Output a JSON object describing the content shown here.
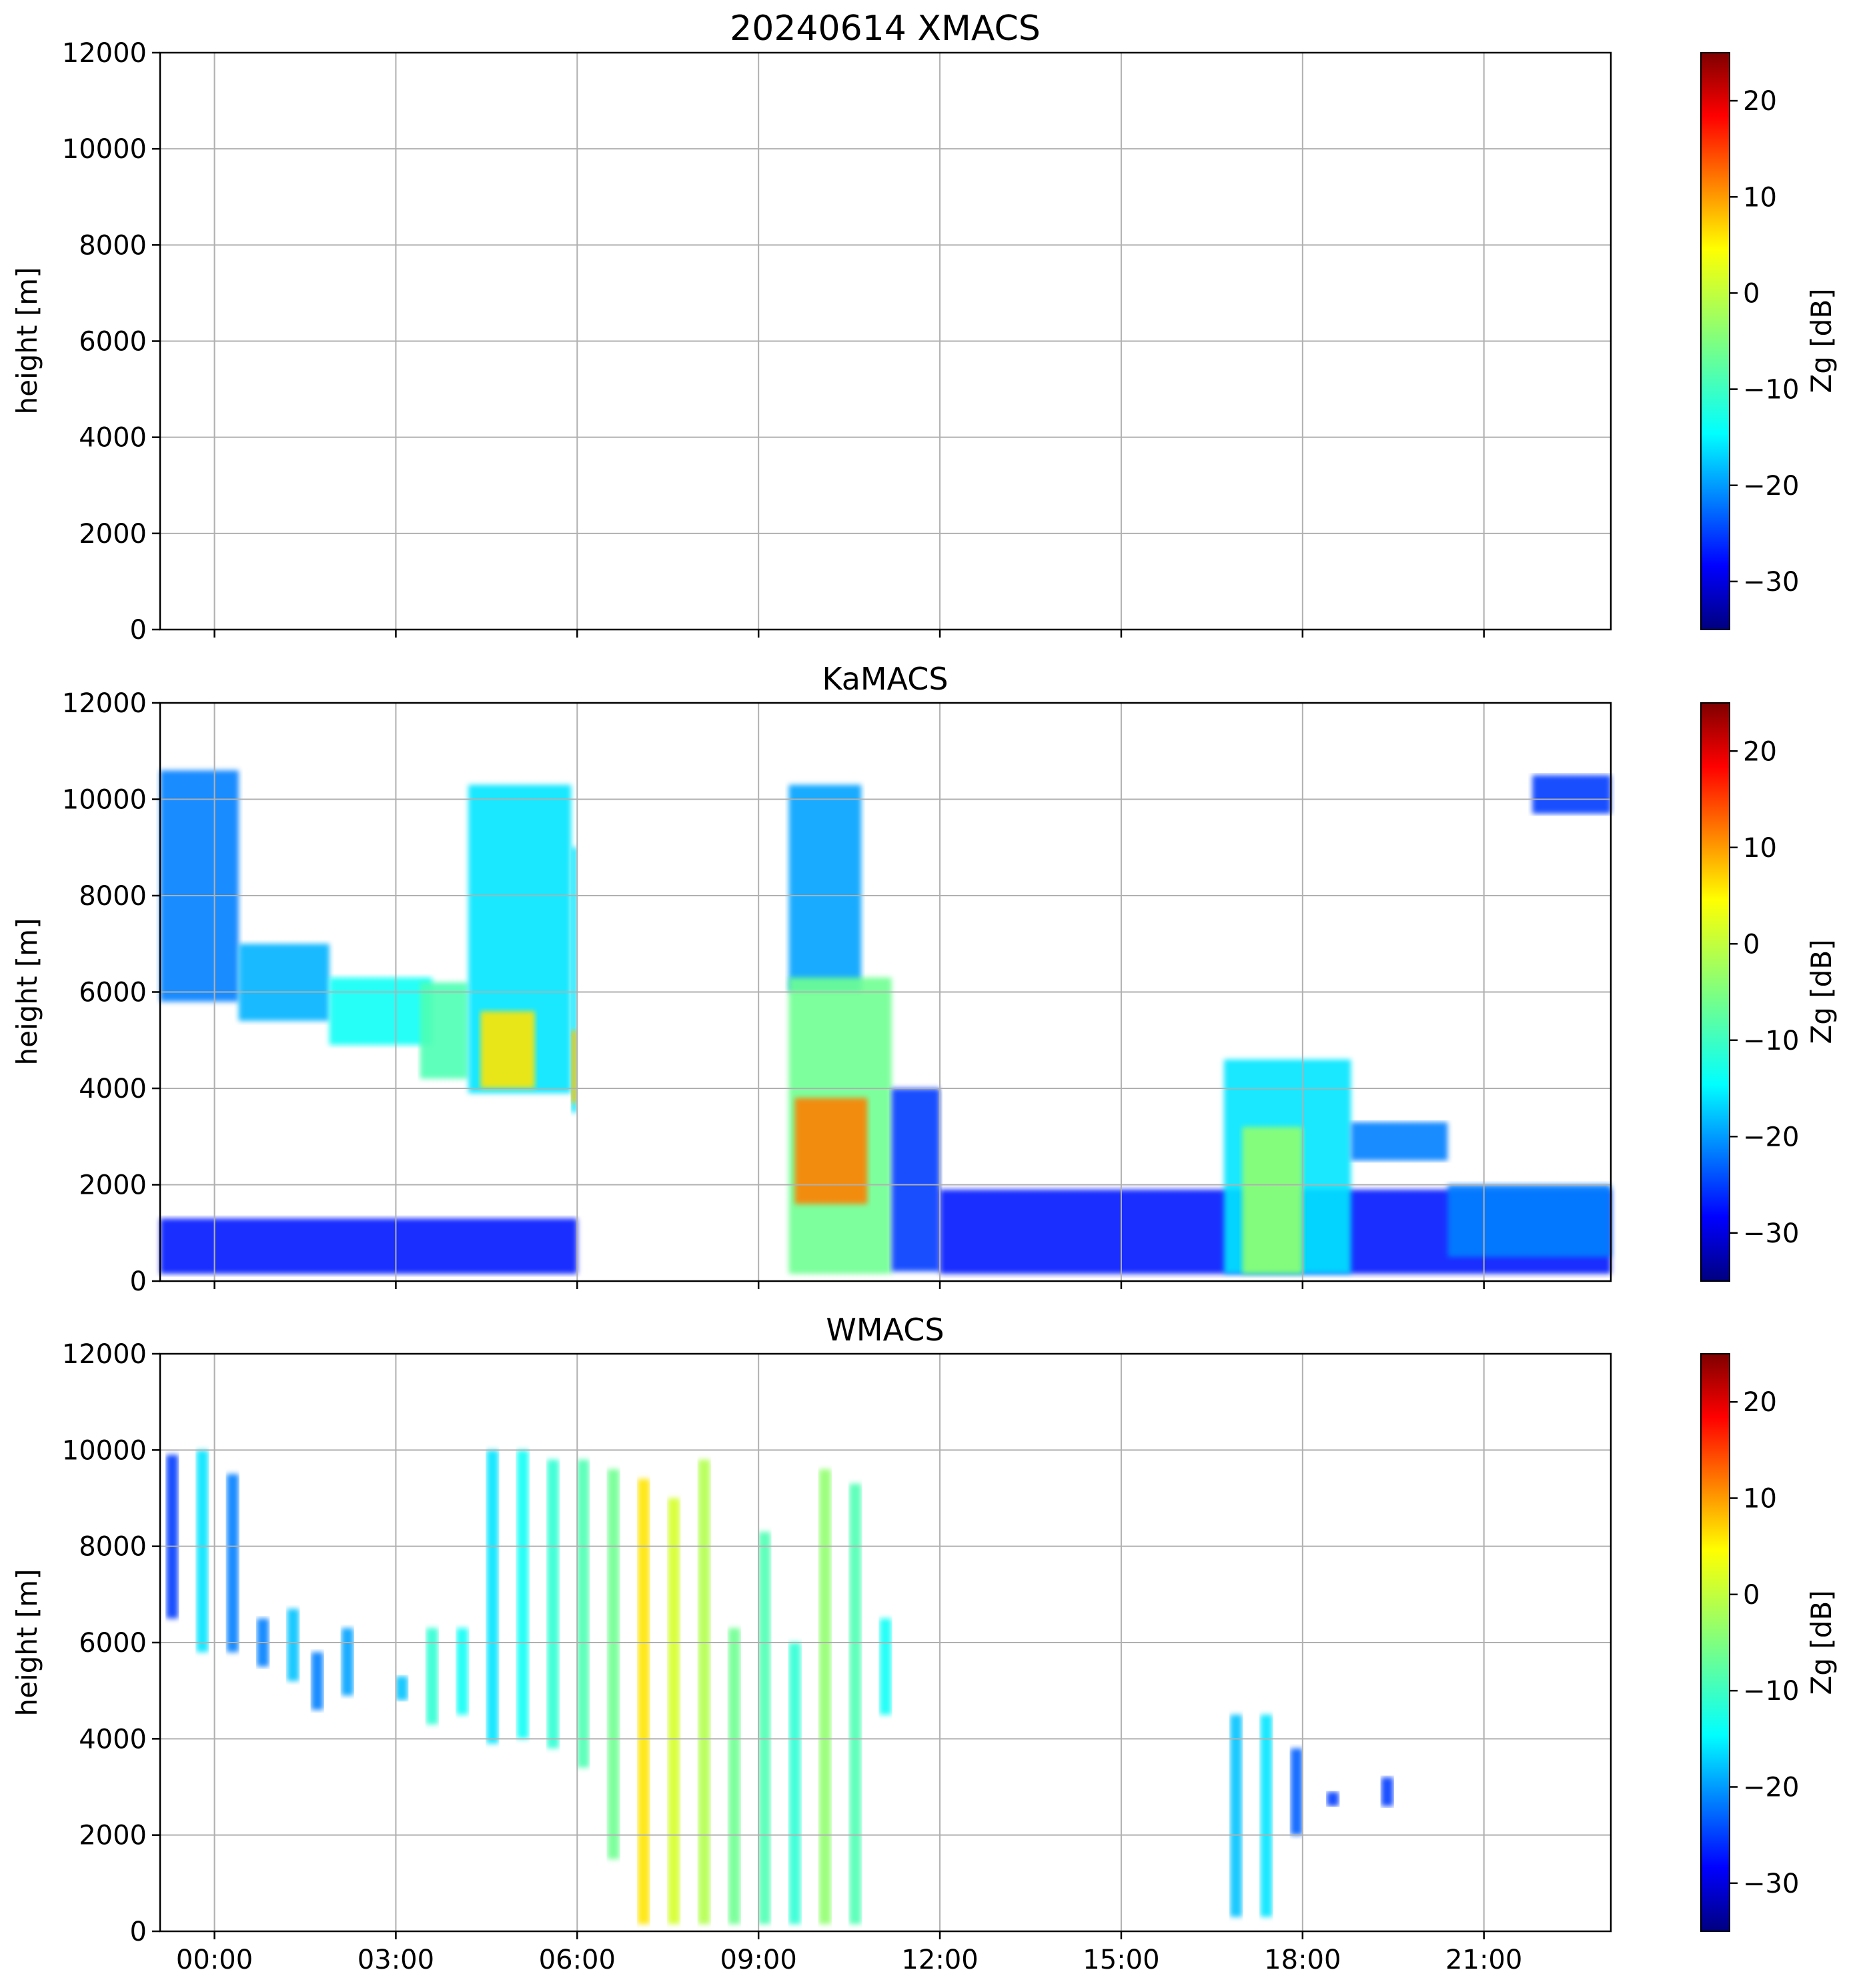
{
  "chart_data": [
    {
      "type": "heatmap",
      "title": "20240614 XMACS",
      "ylabel": "height [m]",
      "ylim": [
        0,
        12000
      ],
      "yticks": [
        "0",
        "2000",
        "4000",
        "6000",
        "8000",
        "10000",
        "12000"
      ],
      "xlim_hours": [
        -0.9,
        23.1
      ],
      "xticks_hours": [
        0,
        3,
        6,
        9,
        12,
        15,
        18,
        21
      ],
      "xticks": [
        "00:00",
        "03:00",
        "06:00",
        "09:00",
        "12:00",
        "15:00",
        "18:00",
        "21:00"
      ],
      "grid": true,
      "colorbar": {
        "label": "Zg [dB]",
        "range": [
          -35,
          25
        ],
        "ticks": [
          "−30",
          "−20",
          "−10",
          "0",
          "10",
          "20"
        ],
        "tick_values": [
          -30,
          -20,
          -10,
          0,
          10,
          20
        ],
        "colormap": "jet"
      },
      "echoes": []
    },
    {
      "type": "heatmap",
      "title": "KaMACS",
      "ylabel": "height [m]",
      "ylim": [
        0,
        12000
      ],
      "yticks": [
        "0",
        "2000",
        "4000",
        "6000",
        "8000",
        "10000",
        "12000"
      ],
      "xlim_hours": [
        -0.9,
        23.1
      ],
      "xticks_hours": [
        0,
        3,
        6,
        9,
        12,
        15,
        18,
        21
      ],
      "xticks": [
        "00:00",
        "03:00",
        "06:00",
        "09:00",
        "12:00",
        "15:00",
        "18:00",
        "21:00"
      ],
      "grid": true,
      "colorbar": {
        "label": "Zg [dB]",
        "range": [
          -35,
          25
        ],
        "ticks": [
          "−30",
          "−20",
          "−10",
          "0",
          "10",
          "20"
        ],
        "tick_values": [
          -30,
          -20,
          -10,
          0,
          10,
          20
        ],
        "colormap": "jet"
      },
      "echoes": [
        {
          "t0": -0.9,
          "t1": 0.4,
          "z0": 5800,
          "z1": 10600,
          "dbz": -20
        },
        {
          "t0": 0.4,
          "t1": 1.9,
          "z0": 5400,
          "z1": 7000,
          "dbz": -17
        },
        {
          "t0": 1.9,
          "t1": 3.6,
          "z0": 4900,
          "z1": 6300,
          "dbz": -12
        },
        {
          "t0": 3.4,
          "t1": 4.2,
          "z0": 4200,
          "z1": 6200,
          "dbz": -8
        },
        {
          "t0": 4.2,
          "t1": 5.9,
          "z0": 3900,
          "z1": 10300,
          "dbz": -14
        },
        {
          "t0": 4.4,
          "t1": 5.3,
          "z0": 4000,
          "z1": 5600,
          "dbz": 4
        },
        {
          "t0": 5.9,
          "t1": 6.0,
          "z0": 3500,
          "z1": 9000,
          "dbz": -14
        },
        {
          "t0": 5.9,
          "t1": 6.0,
          "z0": 3700,
          "z1": 5200,
          "dbz": 6
        },
        {
          "t0": -0.9,
          "t1": 6.0,
          "z0": 150,
          "z1": 1300,
          "dbz": -26
        },
        {
          "t0": 9.5,
          "t1": 10.7,
          "z0": 6000,
          "z1": 10300,
          "dbz": -18
        },
        {
          "t0": 9.5,
          "t1": 11.2,
          "z0": 150,
          "z1": 6300,
          "dbz": -6
        },
        {
          "t0": 9.6,
          "t1": 10.8,
          "z0": 1600,
          "z1": 3800,
          "dbz": 10
        },
        {
          "t0": 11.2,
          "t1": 12.0,
          "z0": 200,
          "z1": 4000,
          "dbz": -24
        },
        {
          "t0": 12.0,
          "t1": 23.1,
          "z0": 150,
          "z1": 1900,
          "dbz": -26
        },
        {
          "t0": 16.7,
          "t1": 18.8,
          "z0": 150,
          "z1": 4600,
          "dbz": -14
        },
        {
          "t0": 17.0,
          "t1": 18.0,
          "z0": 150,
          "z1": 3200,
          "dbz": -4
        },
        {
          "t0": 18.8,
          "t1": 20.4,
          "z0": 2500,
          "z1": 3300,
          "dbz": -20
        },
        {
          "t0": 20.4,
          "t1": 23.1,
          "z0": 500,
          "z1": 2000,
          "dbz": -20
        },
        {
          "t0": 21.8,
          "t1": 23.1,
          "z0": 9700,
          "z1": 10500,
          "dbz": -24
        }
      ]
    },
    {
      "type": "heatmap",
      "title": "WMACS",
      "ylabel": "height [m]",
      "ylim": [
        0,
        12000
      ],
      "yticks": [
        "0",
        "2000",
        "4000",
        "6000",
        "8000",
        "10000",
        "12000"
      ],
      "xlim_hours": [
        -0.9,
        23.1
      ],
      "xticks_hours": [
        0,
        3,
        6,
        9,
        12,
        15,
        18,
        21
      ],
      "xticks": [
        "00:00",
        "03:00",
        "06:00",
        "09:00",
        "12:00",
        "15:00",
        "18:00",
        "21:00"
      ],
      "grid": true,
      "colorbar": {
        "label": "Zg [dB]",
        "range": [
          -35,
          25
        ],
        "ticks": [
          "−30",
          "−20",
          "−10",
          "0",
          "10",
          "20"
        ],
        "tick_values": [
          -30,
          -20,
          -10,
          0,
          10,
          20
        ],
        "colormap": "jet"
      },
      "echoes": [
        {
          "t0": -0.8,
          "t1": -0.6,
          "z0": 6500,
          "z1": 9900,
          "dbz": -24
        },
        {
          "t0": -0.3,
          "t1": -0.1,
          "z0": 5800,
          "z1": 10000,
          "dbz": -14
        },
        {
          "t0": 0.2,
          "t1": 0.4,
          "z0": 5800,
          "z1": 9500,
          "dbz": -20
        },
        {
          "t0": 0.7,
          "t1": 0.9,
          "z0": 5500,
          "z1": 6500,
          "dbz": -20
        },
        {
          "t0": 1.2,
          "t1": 1.4,
          "z0": 5200,
          "z1": 6700,
          "dbz": -16
        },
        {
          "t0": 1.6,
          "t1": 1.8,
          "z0": 4600,
          "z1": 5800,
          "dbz": -20
        },
        {
          "t0": 2.1,
          "t1": 2.3,
          "z0": 4900,
          "z1": 6300,
          "dbz": -18
        },
        {
          "t0": 3.0,
          "t1": 3.2,
          "z0": 4800,
          "z1": 5300,
          "dbz": -16
        },
        {
          "t0": 3.5,
          "t1": 3.7,
          "z0": 4300,
          "z1": 6300,
          "dbz": -10
        },
        {
          "t0": 4.0,
          "t1": 4.2,
          "z0": 4500,
          "z1": 6300,
          "dbz": -12
        },
        {
          "t0": 4.5,
          "t1": 4.7,
          "z0": 3900,
          "z1": 10000,
          "dbz": -14
        },
        {
          "t0": 5.0,
          "t1": 5.2,
          "z0": 4000,
          "z1": 10000,
          "dbz": -12
        },
        {
          "t0": 5.5,
          "t1": 5.7,
          "z0": 3800,
          "z1": 9800,
          "dbz": -10
        },
        {
          "t0": 6.0,
          "t1": 6.2,
          "z0": 3400,
          "z1": 9800,
          "dbz": -8
        },
        {
          "t0": 6.5,
          "t1": 6.7,
          "z0": 1500,
          "z1": 9600,
          "dbz": -6
        },
        {
          "t0": 7.0,
          "t1": 7.2,
          "z0": 150,
          "z1": 9400,
          "dbz": 4
        },
        {
          "t0": 7.5,
          "t1": 7.7,
          "z0": 150,
          "z1": 9000,
          "dbz": 0
        },
        {
          "t0": 8.0,
          "t1": 8.2,
          "z0": 150,
          "z1": 9800,
          "dbz": -2
        },
        {
          "t0": 8.5,
          "t1": 8.7,
          "z0": 150,
          "z1": 6300,
          "dbz": -6
        },
        {
          "t0": 9.0,
          "t1": 9.2,
          "z0": 150,
          "z1": 8300,
          "dbz": -8
        },
        {
          "t0": 9.5,
          "t1": 9.7,
          "z0": 150,
          "z1": 6000,
          "dbz": -10
        },
        {
          "t0": 10.0,
          "t1": 10.2,
          "z0": 150,
          "z1": 9600,
          "dbz": -4
        },
        {
          "t0": 10.5,
          "t1": 10.7,
          "z0": 150,
          "z1": 9300,
          "dbz": -8
        },
        {
          "t0": 11.0,
          "t1": 11.2,
          "z0": 4500,
          "z1": 6500,
          "dbz": -12
        },
        {
          "t0": 16.8,
          "t1": 17.0,
          "z0": 300,
          "z1": 4500,
          "dbz": -16
        },
        {
          "t0": 17.3,
          "t1": 17.5,
          "z0": 300,
          "z1": 4500,
          "dbz": -14
        },
        {
          "t0": 17.8,
          "t1": 18.0,
          "z0": 2000,
          "z1": 3800,
          "dbz": -22
        },
        {
          "t0": 18.4,
          "t1": 18.6,
          "z0": 2600,
          "z1": 2900,
          "dbz": -24
        },
        {
          "t0": 19.3,
          "t1": 19.5,
          "z0": 2600,
          "z1": 3200,
          "dbz": -24
        }
      ]
    }
  ]
}
